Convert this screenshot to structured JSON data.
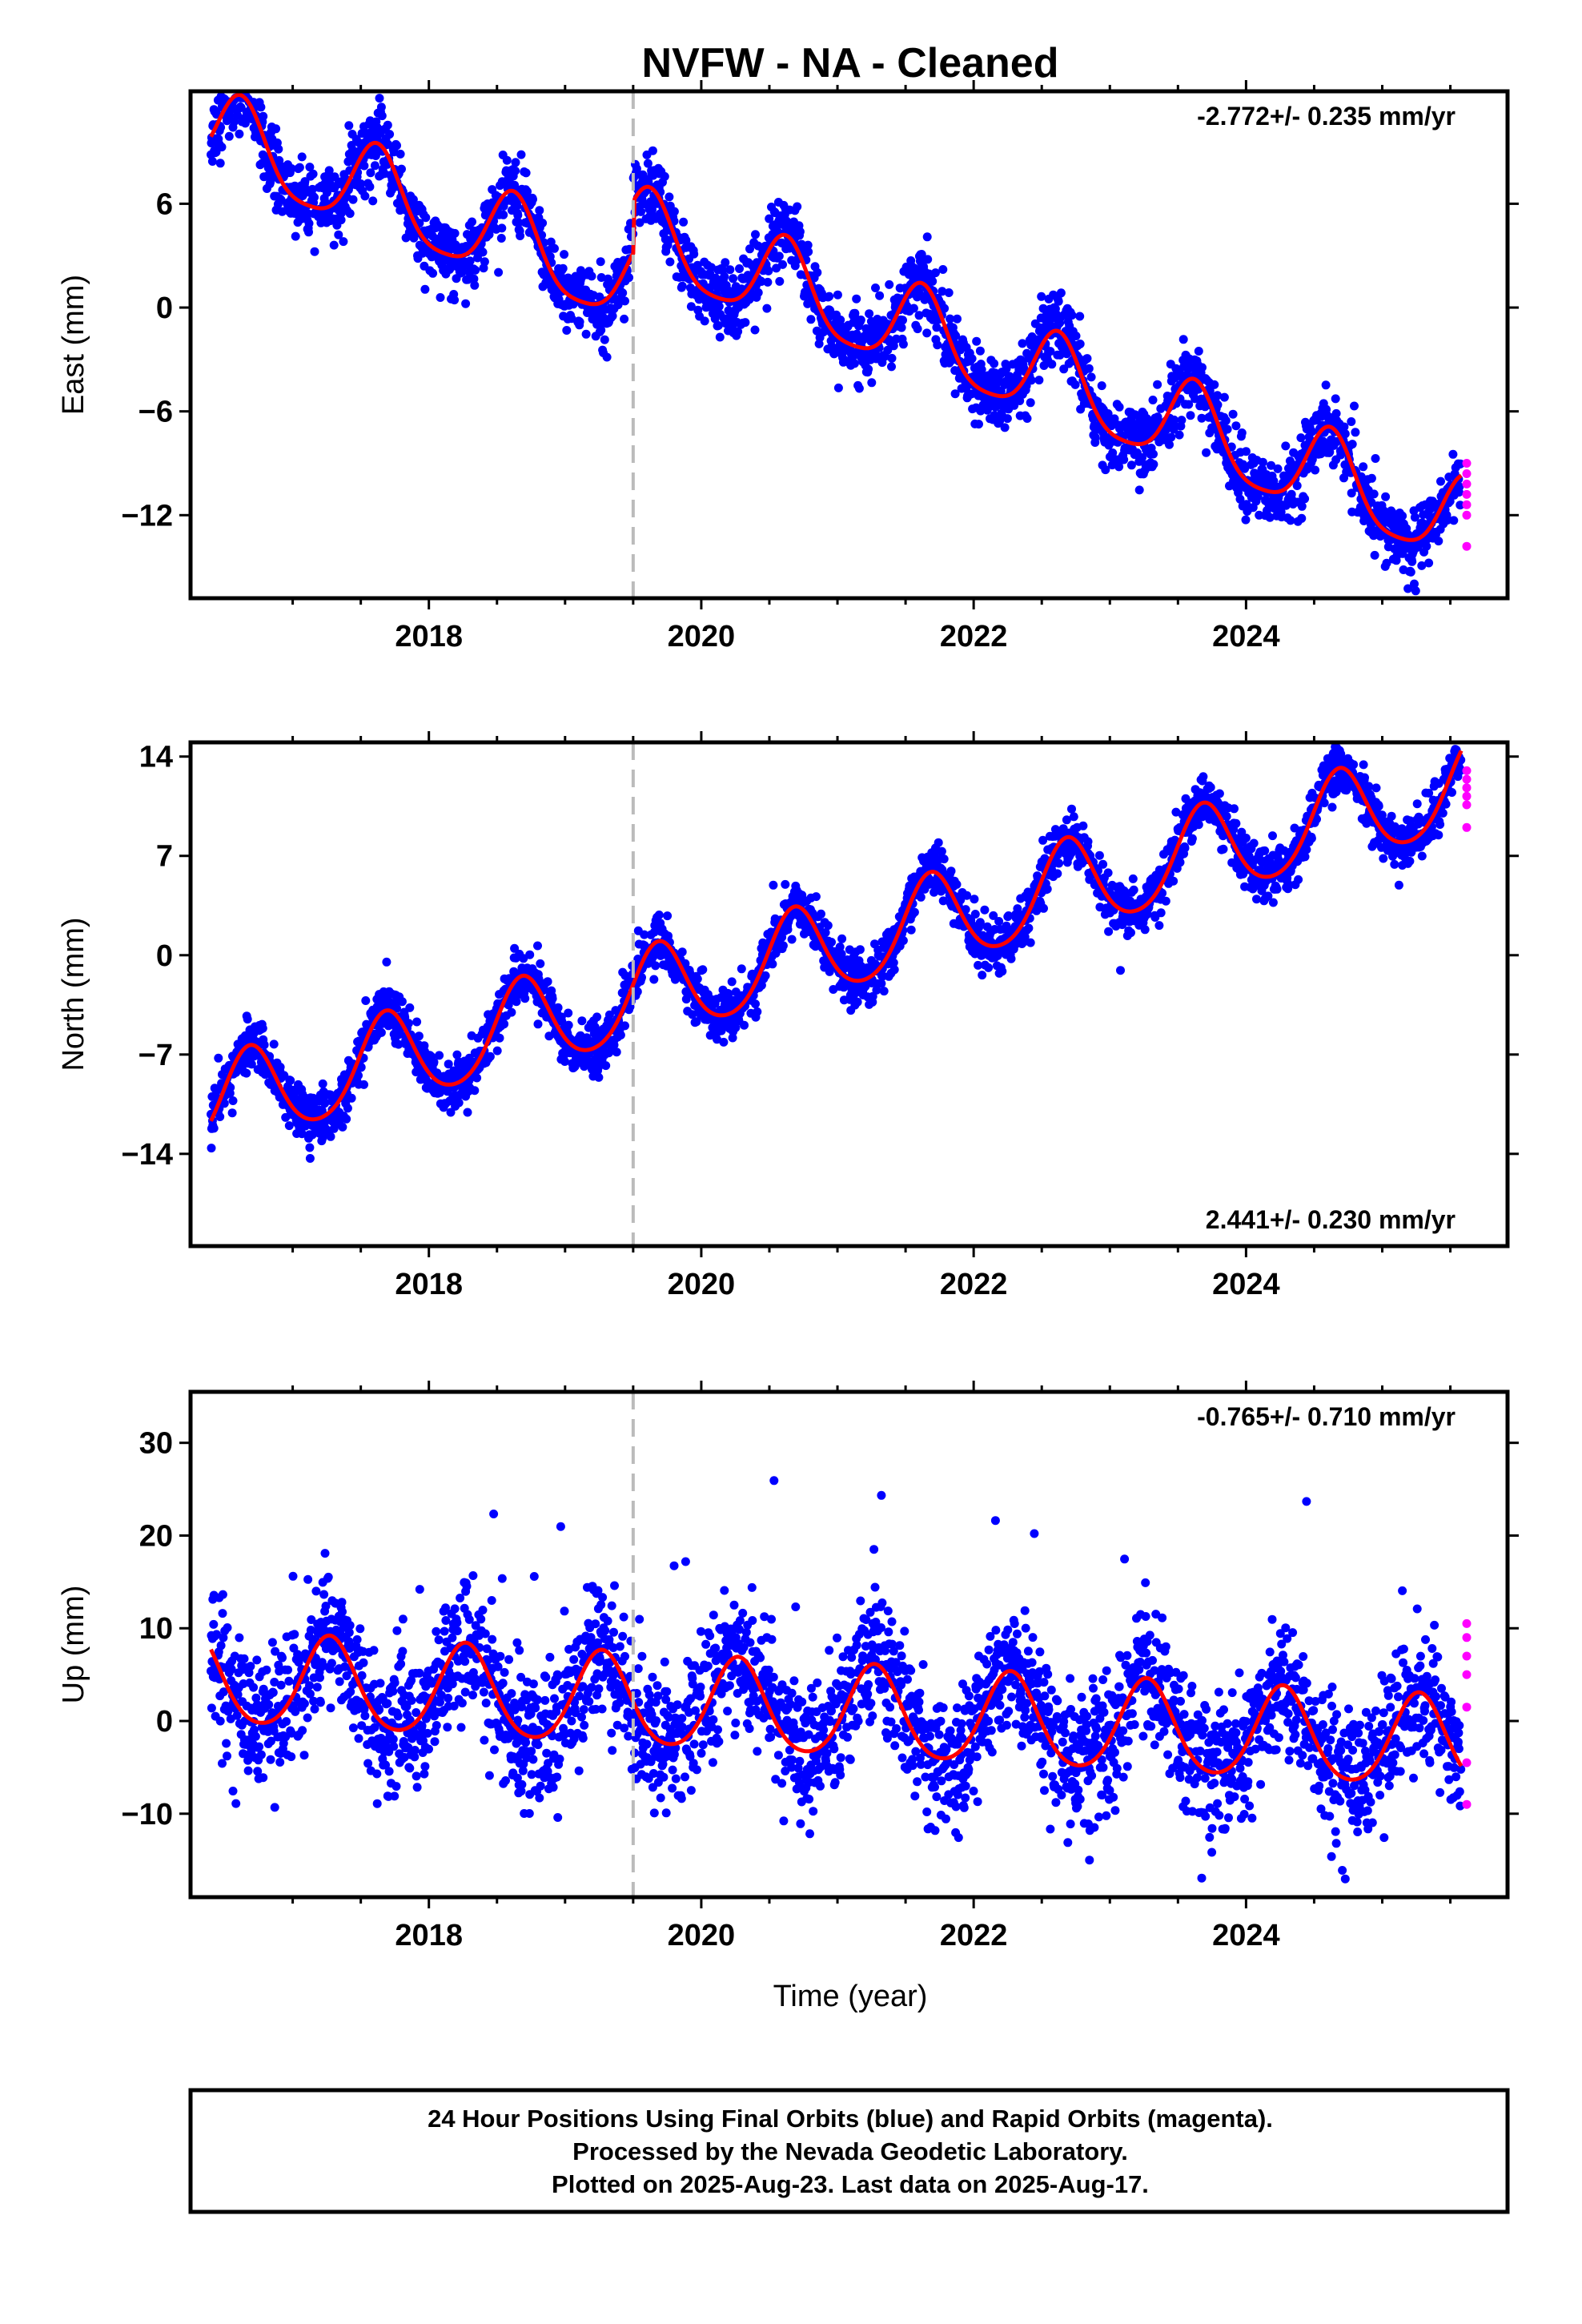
{
  "title": "NVFW  - NA - Cleaned",
  "xlabel": "Time (year)",
  "caption": [
    "24 Hour Positions Using Final Orbits (blue) and Rapid Orbits (magenta).",
    "Processed by the Nevada Geodetic Laboratory.",
    "Plotted on 2025-Aug-23. Last data on 2025-Aug-17."
  ],
  "colors": {
    "final": "#0000ff",
    "rapid": "#ff00ff",
    "model": "#ff0000",
    "step": "#bbbbbb"
  },
  "chart_data": [
    {
      "type": "scatter",
      "component": "east",
      "ylabel": "East (mm)",
      "rate_label": "-2.772+/- 0.235 mm/yr",
      "rate_position": "top-right",
      "xlim": [
        2016.25,
        2025.92
      ],
      "ylim": [
        -16.8,
        12.5
      ],
      "xticks": [
        2018,
        2020,
        2022,
        2024
      ],
      "yticks": [
        -12,
        -6,
        0,
        6
      ],
      "step_epoch": 2019.5,
      "model": {
        "offset": 10.3,
        "trend": -2.772,
        "step": 3.0,
        "annual_amplitude": 2.5,
        "annual_phase": 3.9,
        "semiannual_amplitude": 0.5,
        "scatter": 1.0
      },
      "rapid_values": [
        -9.0,
        -9.6,
        -10.2,
        -10.8,
        -11.4,
        -12.0,
        -13.8
      ]
    },
    {
      "type": "scatter",
      "component": "north",
      "ylabel": "North (mm)",
      "rate_label": "2.441+/- 0.230 mm/yr",
      "rate_position": "bottom-right",
      "xlim": [
        2016.25,
        2025.92
      ],
      "ylim": [
        -20.5,
        15.0
      ],
      "xticks": [
        2018,
        2020,
        2022,
        2024
      ],
      "yticks": [
        -14,
        -7,
        0,
        7,
        14
      ],
      "step_epoch": 2019.5,
      "model": {
        "offset": -11.0,
        "trend": 2.441,
        "step": 0.0,
        "annual_amplitude": 3.2,
        "annual_phase": 4.3,
        "semiannual_amplitude": 0.4,
        "scatter": 0.9
      },
      "rapid_values": [
        13.0,
        12.4,
        11.8,
        11.2,
        10.6,
        9.0
      ]
    },
    {
      "type": "scatter",
      "component": "up",
      "ylabel": "Up (mm)",
      "rate_label": "-0.765+/- 0.710 mm/yr",
      "rate_position": "top-right",
      "xlim": [
        2016.25,
        2025.92
      ],
      "ylim": [
        -19.0,
        35.5
      ],
      "xticks": [
        2018,
        2020,
        2022,
        2024
      ],
      "yticks": [
        -10,
        0,
        10,
        20,
        30
      ],
      "step_epoch": 2019.5,
      "model": {
        "offset": 4.5,
        "trend": -0.765,
        "step": 0.0,
        "annual_amplitude": 4.9,
        "annual_phase": 1.7,
        "semiannual_amplitude": 0.6,
        "scatter": 3.6
      },
      "rapid_values": [
        10.5,
        9.0,
        7.0,
        5.0,
        1.5,
        -4.5,
        -9.0
      ]
    }
  ]
}
